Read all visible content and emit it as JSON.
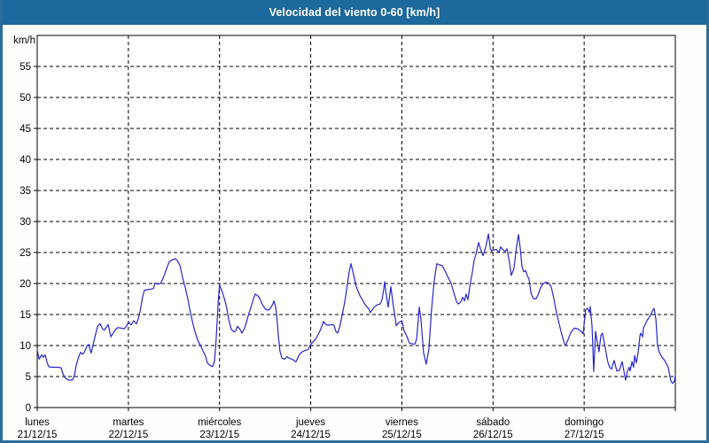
{
  "window": {
    "title": "Velocidad del viento 0-60 [km/h]"
  },
  "colors": {
    "frame_border": "#2c6c99",
    "titlebar_bg": "#1d689c",
    "titlebar_text": "#ffffff",
    "plot_background": "#ffffff",
    "plot_border": "#000000",
    "grid": "#000000",
    "tick_text": "#000000",
    "line": "#2626c9"
  },
  "chart_data": {
    "type": "line",
    "title": "Velocidad del viento 0-60 [km/h]",
    "unit_label": "km/h",
    "grid": "dashed",
    "legend": "none",
    "y_axis": {
      "min": 0,
      "max": 60,
      "tick_step": 5,
      "tick_labels": [
        "0",
        "5",
        "10",
        "15",
        "20",
        "25",
        "30",
        "35",
        "40",
        "45",
        "50",
        "55"
      ]
    },
    "x_axis": {
      "total_hours": 168,
      "hours_per_day": 24,
      "days": [
        {
          "name": "lunes",
          "date": "21/12/15"
        },
        {
          "name": "martes",
          "date": "22/12/15"
        },
        {
          "name": "miércoles",
          "date": "23/12/15"
        },
        {
          "name": "jueves",
          "date": "24/12/15"
        },
        {
          "name": "viernes",
          "date": "25/12/15"
        },
        {
          "name": "sábado",
          "date": "26/12/15"
        },
        {
          "name": "domingo",
          "date": "27/12/15"
        }
      ]
    },
    "series": [
      {
        "name": "Velocidad del viento",
        "points": [
          [
            0,
            9.3
          ],
          [
            0.5,
            7.8
          ],
          [
            1.2,
            8.5
          ],
          [
            1.6,
            8.1
          ],
          [
            2.1,
            8.5
          ],
          [
            2.6,
            7.3
          ],
          [
            3,
            6.6
          ],
          [
            3.7,
            6.5
          ],
          [
            5.6,
            6.5
          ],
          [
            6.3,
            6.4
          ],
          [
            6.8,
            5.4
          ],
          [
            7.5,
            4.7
          ],
          [
            8.4,
            4.4
          ],
          [
            9.3,
            4.5
          ],
          [
            9.8,
            5.2
          ],
          [
            10.3,
            6.9
          ],
          [
            11,
            8.3
          ],
          [
            11.4,
            8.9
          ],
          [
            11.9,
            8.6
          ],
          [
            12.4,
            8.9
          ],
          [
            13.1,
            9.9
          ],
          [
            13.5,
            10.2
          ],
          [
            14.2,
            8.8
          ],
          [
            15.2,
            11.4
          ],
          [
            15.9,
            13.1
          ],
          [
            16.6,
            13.5
          ],
          [
            17.3,
            12.6
          ],
          [
            17.7,
            12.5
          ],
          [
            18.7,
            13.4
          ],
          [
            19.4,
            11.4
          ],
          [
            20.1,
            12.1
          ],
          [
            20.5,
            12.5
          ],
          [
            21.2,
            12.9
          ],
          [
            22.2,
            12.8
          ],
          [
            22.9,
            12.7
          ],
          [
            23.6,
            13.2
          ],
          [
            24,
            13.8
          ],
          [
            24.7,
            13.3
          ],
          [
            25.4,
            14
          ],
          [
            26.1,
            13.5
          ],
          [
            26.6,
            14.3
          ],
          [
            27.1,
            15.5
          ],
          [
            27.8,
            18
          ],
          [
            28.2,
            18.9
          ],
          [
            28.9,
            19
          ],
          [
            29.9,
            19.1
          ],
          [
            30.6,
            19.2
          ],
          [
            31,
            20.1
          ],
          [
            31.7,
            19.9
          ],
          [
            32.4,
            20
          ],
          [
            32.9,
            20.5
          ],
          [
            33.6,
            21.6
          ],
          [
            34.3,
            22.8
          ],
          [
            34.8,
            23.5
          ],
          [
            35.5,
            23.8
          ],
          [
            36.4,
            24
          ],
          [
            36.9,
            23.7
          ],
          [
            37.6,
            22.9
          ],
          [
            38.3,
            20.9
          ],
          [
            39,
            19.3
          ],
          [
            39.7,
            17.4
          ],
          [
            40.1,
            16
          ],
          [
            40.8,
            14
          ],
          [
            41.5,
            12.3
          ],
          [
            42.2,
            10.9
          ],
          [
            42.9,
            10.1
          ],
          [
            43.6,
            9.2
          ],
          [
            44.3,
            8.3
          ],
          [
            44.8,
            7.2
          ],
          [
            45.5,
            6.8
          ],
          [
            46.2,
            6.6
          ],
          [
            46.7,
            7.5
          ],
          [
            47.1,
            11
          ],
          [
            47.6,
            16.5
          ],
          [
            48,
            19.8
          ],
          [
            48.8,
            18.5
          ],
          [
            49.5,
            17.1
          ],
          [
            49.9,
            16
          ],
          [
            50.4,
            14.2
          ],
          [
            51.1,
            12.6
          ],
          [
            51.8,
            12.2
          ],
          [
            52.3,
            12.4
          ],
          [
            52.7,
            13.1
          ],
          [
            53.4,
            12.6
          ],
          [
            53.9,
            12
          ],
          [
            54.6,
            12.8
          ],
          [
            55.1,
            13.8
          ],
          [
            55.8,
            15.3
          ],
          [
            56.5,
            16.6
          ],
          [
            56.9,
            17.5
          ],
          [
            57.4,
            18.3
          ],
          [
            58.1,
            18
          ],
          [
            58.6,
            17.6
          ],
          [
            59.3,
            16.6
          ],
          [
            60,
            15.9
          ],
          [
            60.7,
            15.7
          ],
          [
            61.1,
            15.8
          ],
          [
            61.6,
            16.2
          ],
          [
            62.1,
            16.8
          ],
          [
            62.3,
            17.2
          ],
          [
            62.8,
            16.2
          ],
          [
            63.2,
            13.8
          ],
          [
            63.5,
            11.5
          ],
          [
            63.9,
            9.1
          ],
          [
            64.4,
            8
          ],
          [
            65.1,
            7.8
          ],
          [
            65.8,
            8.2
          ],
          [
            66.5,
            7.9
          ],
          [
            67.2,
            7.8
          ],
          [
            67.7,
            7.5
          ],
          [
            68.1,
            7.4
          ],
          [
            69.1,
            8.6
          ],
          [
            69.8,
            9
          ],
          [
            70.5,
            9.2
          ],
          [
            71.2,
            9.3
          ],
          [
            71.6,
            9.7
          ],
          [
            72,
            10.2
          ],
          [
            72.8,
            10.7
          ],
          [
            73.3,
            11
          ],
          [
            74,
            11.8
          ],
          [
            74.7,
            12.7
          ],
          [
            75.4,
            13.9
          ],
          [
            75.8,
            13.5
          ],
          [
            76.3,
            13.3
          ],
          [
            77,
            13.3
          ],
          [
            77.7,
            13.4
          ],
          [
            78.2,
            13.2
          ],
          [
            78.6,
            12.3
          ],
          [
            79.1,
            12
          ],
          [
            79.6,
            12.9
          ],
          [
            80.3,
            14.9
          ],
          [
            81,
            17.1
          ],
          [
            81.7,
            20
          ],
          [
            82.1,
            21.8
          ],
          [
            82.6,
            23.2
          ],
          [
            83.3,
            21.4
          ],
          [
            84,
            19.5
          ],
          [
            84.9,
            18.1
          ],
          [
            85.6,
            17.4
          ],
          [
            86.3,
            16.6
          ],
          [
            87.3,
            15.9
          ],
          [
            87.7,
            15.3
          ],
          [
            88.7,
            16.2
          ],
          [
            89.6,
            16.6
          ],
          [
            90.3,
            16.7
          ],
          [
            90.8,
            17.4
          ],
          [
            91.2,
            19
          ],
          [
            91.5,
            20.3
          ],
          [
            91.9,
            18.1
          ],
          [
            92.4,
            16.2
          ],
          [
            93.1,
            19.5
          ],
          [
            93.8,
            16.2
          ],
          [
            94.3,
            14.3
          ],
          [
            94.5,
            13.2
          ],
          [
            95.2,
            13.7
          ],
          [
            96,
            14
          ],
          [
            96.6,
            12.4
          ],
          [
            97.3,
            11.5
          ],
          [
            98,
            10.4
          ],
          [
            98.7,
            10.3
          ],
          [
            99.4,
            10.2
          ],
          [
            99.9,
            11
          ],
          [
            100.6,
            16.2
          ],
          [
            101,
            14.3
          ],
          [
            101.7,
            8.9
          ],
          [
            102.4,
            7
          ],
          [
            103.1,
            9.4
          ],
          [
            103.8,
            15.7
          ],
          [
            104.5,
            20.4
          ],
          [
            105.2,
            23.2
          ],
          [
            105.9,
            23
          ],
          [
            106.6,
            22.9
          ],
          [
            107.3,
            22.1
          ],
          [
            108,
            21.2
          ],
          [
            109,
            20
          ],
          [
            109.7,
            18.5
          ],
          [
            110.4,
            17.1
          ],
          [
            110.8,
            16.7
          ],
          [
            111.5,
            17
          ],
          [
            112,
            17.8
          ],
          [
            112.5,
            17.2
          ],
          [
            112.9,
            18.3
          ],
          [
            113.4,
            17.4
          ],
          [
            113.9,
            19.5
          ],
          [
            114.6,
            21.9
          ],
          [
            115,
            23.7
          ],
          [
            115.5,
            24.7
          ],
          [
            116.2,
            26.6
          ],
          [
            116.7,
            25.6
          ],
          [
            117.4,
            24.5
          ],
          [
            118.1,
            25.9
          ],
          [
            118.8,
            28
          ],
          [
            119.3,
            25.6
          ],
          [
            119.7,
            25.2
          ],
          [
            120,
            25.4
          ],
          [
            120.9,
            25.5
          ],
          [
            121.6,
            25
          ],
          [
            122,
            25.9
          ],
          [
            122.7,
            25.4
          ],
          [
            123.2,
            25.2
          ],
          [
            123.7,
            25.6
          ],
          [
            124.4,
            23.2
          ],
          [
            124.8,
            21.3
          ],
          [
            125.5,
            22.4
          ],
          [
            126.2,
            26
          ],
          [
            126.7,
            27.9
          ],
          [
            127.2,
            25.6
          ],
          [
            127.6,
            22.8
          ],
          [
            128.1,
            21.9
          ],
          [
            128.6,
            22.1
          ],
          [
            129,
            21.3
          ],
          [
            129.5,
            20.7
          ],
          [
            130,
            18.5
          ],
          [
            130.4,
            17.8
          ],
          [
            130.9,
            17.5
          ],
          [
            131.4,
            17.6
          ],
          [
            131.8,
            18.1
          ],
          [
            132.5,
            19.3
          ],
          [
            133.2,
            20
          ],
          [
            133.9,
            20.2
          ],
          [
            134.6,
            20.1
          ],
          [
            135.3,
            19.5
          ],
          [
            136,
            17.6
          ],
          [
            136.7,
            15.3
          ],
          [
            137.4,
            13.5
          ],
          [
            138.1,
            11.8
          ],
          [
            138.8,
            10.3
          ],
          [
            139.1,
            10
          ],
          [
            139.8,
            11
          ],
          [
            140.5,
            12.1
          ],
          [
            141.4,
            12.8
          ],
          [
            142.3,
            12.7
          ],
          [
            143,
            12.4
          ],
          [
            143.7,
            11.9
          ],
          [
            144.4,
            15.8
          ],
          [
            144.9,
            16
          ],
          [
            145.4,
            15.3
          ],
          [
            145.6,
            16.3
          ],
          [
            146.1,
            13
          ],
          [
            146.5,
            5.8
          ],
          [
            147,
            12.3
          ],
          [
            147.4,
            10.8
          ],
          [
            147.9,
            9
          ],
          [
            148.4,
            11.6
          ],
          [
            148.8,
            12
          ],
          [
            149.5,
            9.8
          ],
          [
            150.2,
            7.4
          ],
          [
            150.7,
            6.5
          ],
          [
            151.2,
            6.2
          ],
          [
            151.9,
            7.6
          ],
          [
            152.6,
            5.9
          ],
          [
            153.3,
            6
          ],
          [
            154,
            7.4
          ],
          [
            154.7,
            5.1
          ],
          [
            154.9,
            4.4
          ],
          [
            155.4,
            5.9
          ],
          [
            155.9,
            6.5
          ],
          [
            156.1,
            5.9
          ],
          [
            156.6,
            7.4
          ],
          [
            157,
            6.5
          ],
          [
            157.3,
            8.4
          ],
          [
            157.7,
            7.2
          ],
          [
            158.2,
            8.8
          ],
          [
            158.7,
            11.6
          ],
          [
            158.9,
            12
          ],
          [
            159.4,
            11.4
          ],
          [
            159.6,
            12.8
          ],
          [
            160.5,
            14
          ],
          [
            161.5,
            14.9
          ],
          [
            161.9,
            15.5
          ],
          [
            162.4,
            16
          ],
          [
            162.9,
            14.2
          ],
          [
            163.3,
            10
          ],
          [
            163.8,
            8.9
          ],
          [
            164.5,
            8.1
          ],
          [
            165.2,
            7.6
          ],
          [
            166.1,
            6.5
          ],
          [
            166.8,
            4.3
          ],
          [
            167.3,
            3.9
          ],
          [
            167.8,
            4.3
          ],
          [
            168,
            5.3
          ]
        ]
      }
    ]
  }
}
